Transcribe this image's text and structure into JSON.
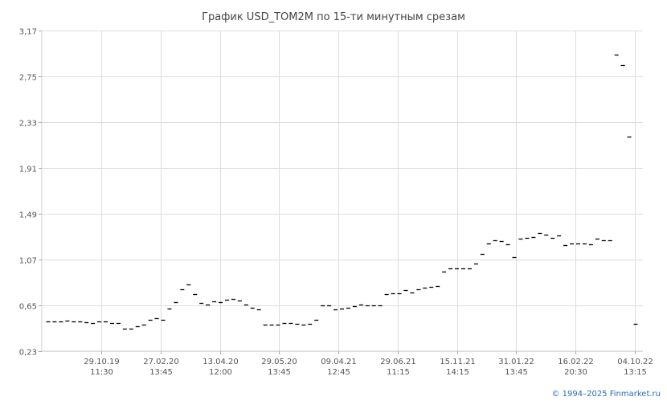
{
  "chart_data": {
    "type": "scatter",
    "title": "График USD_TOM2M по 15-ти минутным срезам",
    "xlabel": "",
    "ylabel": "",
    "ylim": [
      0.23,
      3.17
    ],
    "y_ticks": [
      "3,17",
      "2,75",
      "2,33",
      "1,91",
      "1,49",
      "1,07",
      "0,65",
      "0,23"
    ],
    "y_tick_values": [
      3.17,
      2.75,
      2.33,
      1.91,
      1.49,
      1.07,
      0.65,
      0.23
    ],
    "x_ticks": [
      {
        "date": "29.10.19",
        "time": "11:30"
      },
      {
        "date": "27.02.20",
        "time": "13:45"
      },
      {
        "date": "13.04.20",
        "time": "12:00"
      },
      {
        "date": "29.05.20",
        "time": "13:45"
      },
      {
        "date": "09.04.21",
        "time": "12:45"
      },
      {
        "date": "29.06.21",
        "time": "11:15"
      },
      {
        "date": "15.11.21",
        "time": "14:15"
      },
      {
        "date": "31.01.22",
        "time": "13:45"
      },
      {
        "date": "16.02.22",
        "time": "20:30"
      },
      {
        "date": "04.10.22",
        "time": "13:15"
      }
    ],
    "grid": true,
    "marker": "dash",
    "color": "#000000",
    "values": [
      0.5,
      0.505,
      0.505,
      0.51,
      0.5,
      0.5,
      0.495,
      0.49,
      0.5,
      0.5,
      0.49,
      0.49,
      0.44,
      0.44,
      0.46,
      0.47,
      0.515,
      0.53,
      0.515,
      0.62,
      0.68,
      0.8,
      0.84,
      0.75,
      0.67,
      0.66,
      0.685,
      0.68,
      0.7,
      0.71,
      0.695,
      0.66,
      0.63,
      0.61,
      0.47,
      0.47,
      0.47,
      0.49,
      0.49,
      0.48,
      0.47,
      0.48,
      0.52,
      0.65,
      0.65,
      0.615,
      0.62,
      0.63,
      0.64,
      0.66,
      0.65,
      0.65,
      0.65,
      0.75,
      0.76,
      0.76,
      0.79,
      0.77,
      0.8,
      0.81,
      0.82,
      0.83,
      0.96,
      0.99,
      0.99,
      0.99,
      0.99,
      1.03,
      1.12,
      1.22,
      1.25,
      1.24,
      1.21,
      1.09,
      1.26,
      1.27,
      1.28,
      1.31,
      1.3,
      1.27,
      1.29,
      1.2,
      1.22,
      1.22,
      1.22,
      1.21,
      1.26,
      1.25,
      1.25,
      2.95,
      2.85,
      2.2,
      0.48
    ]
  },
  "copyright": "© 1994–2025 Finmarket.ru"
}
